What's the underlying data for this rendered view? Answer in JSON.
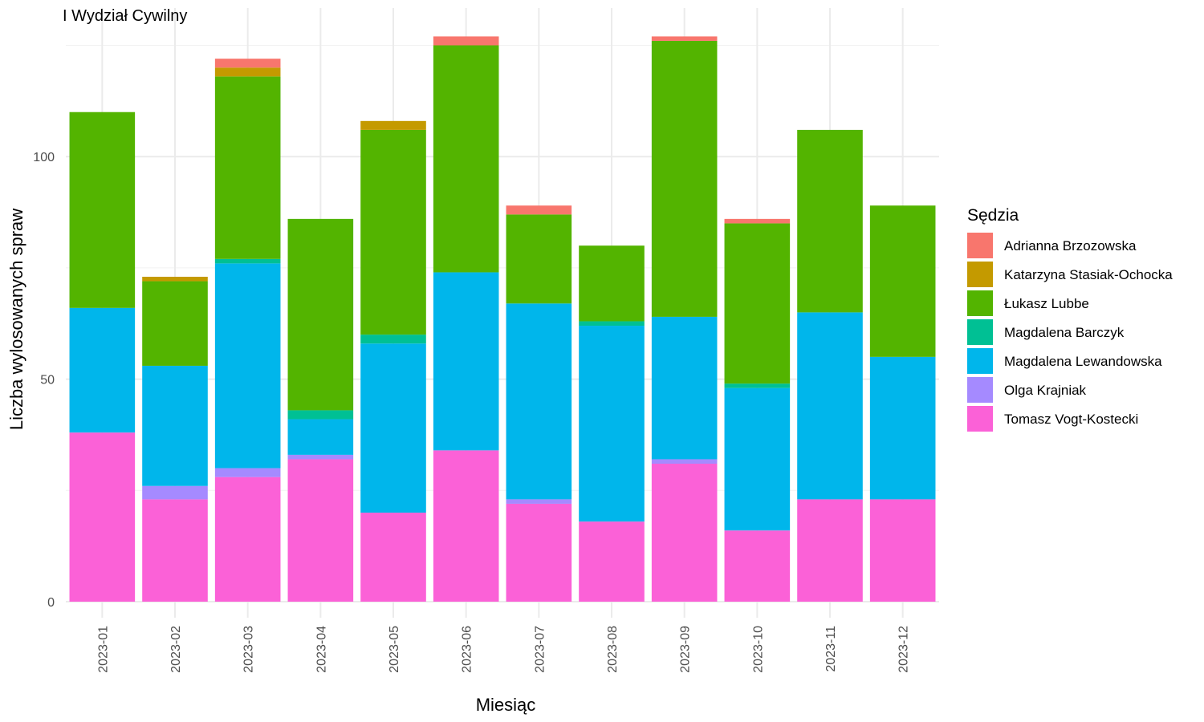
{
  "chart_data": {
    "type": "bar",
    "stacked": true,
    "title": "I Wydział Cywilny",
    "xlabel": "Miesiąc",
    "ylabel": "Liczba wylosowanych spraw",
    "ylim": [
      0,
      127
    ],
    "yticks": [
      0,
      50,
      100
    ],
    "grid": true,
    "legend_title": "Sędzia",
    "legend_position": "right",
    "categories": [
      "2023-01",
      "2023-02",
      "2023-03",
      "2023-04",
      "2023-05",
      "2023-06",
      "2023-07",
      "2023-08",
      "2023-09",
      "2023-10",
      "2023-11",
      "2023-12"
    ],
    "series": [
      {
        "name": "Adrianna Brzozowska",
        "color": "#F8766D",
        "values": [
          0,
          0,
          2,
          0,
          0,
          2,
          2,
          0,
          1,
          1,
          0,
          0
        ]
      },
      {
        "name": "Katarzyna Stasiak-Ochocka",
        "color": "#C49A00",
        "values": [
          0,
          1,
          2,
          0,
          2,
          0,
          0,
          0,
          0,
          0,
          0,
          0
        ]
      },
      {
        "name": "Łukasz Lubbe",
        "color": "#53B400",
        "values": [
          44,
          19,
          41,
          43,
          46,
          51,
          20,
          17,
          62,
          36,
          41,
          34
        ]
      },
      {
        "name": "Magdalena Barczyk",
        "color": "#00C094",
        "values": [
          0,
          0,
          1,
          2,
          2,
          0,
          0,
          1,
          0,
          1,
          0,
          0
        ]
      },
      {
        "name": "Magdalena Lewandowska",
        "color": "#00B6EB",
        "values": [
          28,
          27,
          46,
          8,
          38,
          40,
          44,
          44,
          32,
          32,
          42,
          32
        ]
      },
      {
        "name": "Olga Krajniak",
        "color": "#A58AFF",
        "values": [
          0,
          3,
          2,
          1,
          0,
          0,
          1,
          0,
          1,
          0,
          0,
          0
        ]
      },
      {
        "name": "Tomasz Vogt-Kostecki",
        "color": "#FB61D7",
        "values": [
          38,
          23,
          28,
          32,
          20,
          34,
          22,
          18,
          31,
          16,
          23,
          23
        ]
      }
    ]
  }
}
